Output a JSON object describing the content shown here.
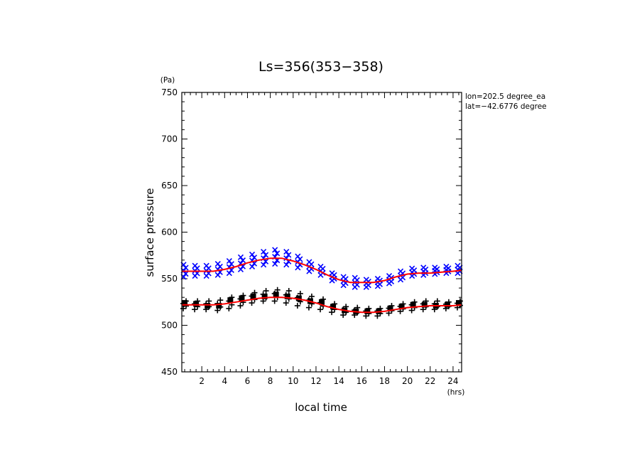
{
  "chart_data": {
    "type": "scatter",
    "title": "Ls=356(353−358)",
    "xlabel": "local time",
    "ylabel": "surface pressure",
    "x_unit": "(hrs)",
    "y_unit": "(Pa)",
    "xlim": [
      0.25,
      24.75
    ],
    "ylim": [
      450,
      750
    ],
    "x_ticks": [
      2,
      4,
      6,
      8,
      10,
      12,
      14,
      16,
      18,
      20,
      22,
      24
    ],
    "y_ticks": [
      450,
      500,
      550,
      600,
      650,
      700,
      750
    ],
    "annotations": [
      "lon=202.5 degree_ea",
      "lat=−42.6776 degree"
    ],
    "grid": false,
    "series": [
      {
        "marker": "x",
        "color": "#0000ff",
        "x": [
          0.5,
          1.5,
          2.5,
          3.5,
          4.5,
          5.5,
          6.5,
          7.5,
          8.5,
          9.5,
          10.5,
          11.5,
          12.5,
          13.5,
          14.5,
          15.5,
          16.5,
          17.5,
          18.5,
          19.5,
          20.5,
          21.5,
          22.5,
          23.5,
          24.5
        ],
        "min": [
          552,
          553,
          553,
          554,
          556,
          560,
          563,
          565,
          566,
          565,
          562,
          558,
          554,
          548,
          543,
          541,
          541,
          542,
          545,
          549,
          553,
          554,
          555,
          556,
          556
        ],
        "max": [
          565,
          564,
          564,
          566,
          569,
          573,
          576,
          579,
          581,
          579,
          574,
          568,
          563,
          556,
          552,
          551,
          549,
          550,
          553,
          558,
          561,
          562,
          562,
          563,
          564
        ]
      },
      {
        "marker": "+",
        "color": "#000000",
        "x": [
          0.5,
          1.5,
          2.5,
          3.5,
          4.5,
          5.5,
          6.5,
          7.5,
          8.5,
          9.5,
          10.5,
          11.5,
          12.5,
          13.5,
          14.5,
          15.5,
          16.5,
          17.5,
          18.5,
          19.5,
          20.5,
          21.5,
          22.5,
          23.5,
          24.5
        ],
        "min": [
          518,
          517,
          517,
          516,
          518,
          521,
          524,
          526,
          526,
          524,
          521,
          519,
          517,
          514,
          511,
          511,
          510,
          510,
          513,
          515,
          516,
          517,
          517,
          518,
          519
        ],
        "max": [
          526,
          526,
          526,
          527,
          530,
          532,
          535,
          537,
          538,
          537,
          534,
          531,
          528,
          523,
          520,
          519,
          518,
          518,
          521,
          523,
          525,
          526,
          526,
          525,
          526
        ],
        "mean": [
          524,
          523,
          521,
          521,
          527,
          529,
          531,
          531,
          533,
          531,
          529,
          526,
          525,
          520,
          516,
          515,
          515,
          515,
          518,
          520,
          522,
          522,
          521,
          522,
          524
        ]
      },
      {
        "type": "line",
        "color": "#ff0000",
        "x": [
          0.25,
          1,
          2,
          3,
          4,
          5,
          6,
          7,
          8,
          9,
          10,
          11,
          12,
          13,
          14,
          15,
          16,
          17,
          18,
          19,
          20,
          21,
          22,
          23,
          24,
          24.75
        ],
        "y": [
          558,
          558,
          558,
          558,
          560,
          563,
          567,
          570,
          572,
          572,
          569,
          565,
          560,
          554,
          549,
          546,
          546,
          546,
          548,
          552,
          555,
          556,
          556,
          557,
          558,
          559
        ]
      },
      {
        "type": "line",
        "color": "#ff0000",
        "x": [
          0.25,
          1,
          2,
          3,
          4,
          5,
          6,
          7,
          8,
          9,
          10,
          11,
          12,
          13,
          14,
          15,
          16,
          17,
          18,
          19,
          20,
          21,
          22,
          23,
          24,
          24.75
        ],
        "y": [
          522,
          522,
          522,
          522,
          523,
          525,
          527,
          529,
          530,
          530,
          529,
          527,
          524,
          520,
          517,
          515,
          514,
          514,
          515,
          517,
          519,
          520,
          521,
          521,
          521,
          522
        ]
      }
    ]
  }
}
